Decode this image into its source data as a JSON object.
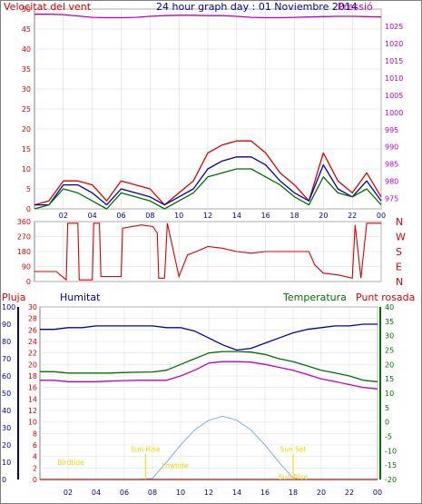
{
  "header": {
    "left_label": "Velocitat del vent",
    "title": "24 hour graph day : 01 Noviembre 2014",
    "right_label": "Pressió"
  },
  "colors": {
    "red": "#e00000",
    "blue": "#0000b0",
    "green": "#007000",
    "magenta": "#c000c0",
    "yellow": "#e8d800",
    "sky": "#7fb0ff",
    "frame": "#808080",
    "tick_blue": "#0000a0"
  },
  "chart_data": [
    {
      "type": "line",
      "name": "wind_pressure",
      "title": "24 hour graph day : 01 Noviembre 2014",
      "xlabel": "",
      "ylabel_left": "Velocitat del vent",
      "ylabel_right": "Pressió",
      "x_ticks": [
        "02",
        "04",
        "06",
        "08",
        "10",
        "12",
        "14",
        "16",
        "18",
        "20",
        "22",
        "00"
      ],
      "ylim_left": [
        0,
        50
      ],
      "yticks_left": [
        0,
        5,
        10,
        15,
        20,
        25,
        30,
        35,
        40,
        45,
        50
      ],
      "ylim_right": [
        972,
        1030
      ],
      "yticks_right": [
        975,
        980,
        985,
        990,
        995,
        1000,
        1005,
        1010,
        1015,
        1020,
        1025
      ],
      "grid": true,
      "hours": [
        0,
        1,
        2,
        3,
        4,
        5,
        6,
        7,
        8,
        9,
        10,
        11,
        12,
        13,
        14,
        15,
        16,
        17,
        18,
        19,
        20,
        21,
        22,
        23,
        24
      ],
      "series": [
        {
          "key": "gust",
          "color": "red",
          "axis": "left",
          "values": [
            1,
            2,
            7,
            7,
            6,
            2,
            7,
            6,
            5,
            1,
            4,
            7,
            14,
            16,
            17,
            17,
            14,
            9,
            6,
            2,
            14,
            7,
            4,
            9,
            3
          ]
        },
        {
          "key": "wind_avg",
          "color": "blue",
          "axis": "left",
          "values": [
            1,
            1,
            6,
            6,
            4,
            1,
            5,
            4,
            3,
            1,
            3,
            5,
            10,
            12,
            13,
            13,
            11,
            7,
            4,
            2,
            11,
            5,
            3,
            7,
            2
          ]
        },
        {
          "key": "wind",
          "color": "green",
          "axis": "left",
          "values": [
            0,
            1,
            5,
            4,
            2,
            0,
            4,
            3,
            2,
            0,
            2,
            4,
            8,
            9,
            10,
            10,
            8,
            6,
            3,
            1,
            8,
            4,
            3,
            5,
            1
          ]
        },
        {
          "key": "pressure",
          "color": "magenta",
          "axis": "right",
          "values": [
            1028.5,
            1028.5,
            1028.4,
            1028,
            1027.6,
            1027.5,
            1027.5,
            1027.6,
            1027.9,
            1028.1,
            1028.2,
            1028.2,
            1028.1,
            1028.1,
            1027.9,
            1027.6,
            1027.5,
            1027.5,
            1027.6,
            1027.7,
            1027.8,
            1027.9,
            1027.9,
            1027.8,
            1027.7
          ]
        }
      ]
    },
    {
      "type": "line",
      "name": "wind_direction",
      "x_ticks": [
        "02",
        "04",
        "06",
        "08",
        "10",
        "12",
        "14",
        "16",
        "18",
        "20",
        "22",
        "00"
      ],
      "ylim": [
        0,
        360
      ],
      "yticks": [
        0,
        90,
        180,
        270,
        360
      ],
      "right_labels": [
        "N",
        "W",
        "S",
        "E",
        "N"
      ],
      "grid": true,
      "points": [
        [
          0,
          60
        ],
        [
          1.5,
          60
        ],
        [
          2.2,
          10
        ],
        [
          2.3,
          350
        ],
        [
          3,
          350
        ],
        [
          3.1,
          10
        ],
        [
          4,
          10
        ],
        [
          4.1,
          350
        ],
        [
          4.5,
          350
        ],
        [
          4.6,
          30
        ],
        [
          6,
          30
        ],
        [
          6.1,
          320
        ],
        [
          7.4,
          340
        ],
        [
          8.2,
          330
        ],
        [
          8.5,
          290
        ],
        [
          8.6,
          20
        ],
        [
          9,
          20
        ],
        [
          9.2,
          350
        ],
        [
          10,
          30
        ],
        [
          10.6,
          160
        ],
        [
          11.2,
          180
        ],
        [
          12,
          210
        ],
        [
          13,
          200
        ],
        [
          14,
          180
        ],
        [
          15,
          170
        ],
        [
          16,
          180
        ],
        [
          17,
          180
        ],
        [
          18,
          180
        ],
        [
          19,
          180
        ],
        [
          19.4,
          100
        ],
        [
          20,
          50
        ],
        [
          21,
          40
        ],
        [
          22,
          20
        ],
        [
          22.2,
          340
        ],
        [
          22.6,
          20
        ],
        [
          23,
          350
        ],
        [
          23.5,
          350
        ],
        [
          24,
          350
        ]
      ]
    },
    {
      "type": "line",
      "name": "humidity_temperature",
      "x_ticks": [
        "02",
        "04",
        "06",
        "08",
        "10",
        "12",
        "14",
        "16",
        "18",
        "20",
        "22",
        "00"
      ],
      "left_labels": {
        "rain": "Pluja",
        "humidity": "Humitat"
      },
      "right_labels": {
        "temperature": "Temperatura",
        "dew": "Punt rosada"
      },
      "ylim_humidity": [
        0,
        100
      ],
      "yticks_humidity": [
        0,
        10,
        20,
        30,
        40,
        50,
        60,
        70,
        80,
        90,
        100
      ],
      "ylim_rain": [
        0,
        30
      ],
      "yticks_rain": [
        0,
        2,
        4,
        6,
        8,
        10,
        12,
        14,
        16,
        18,
        20,
        22,
        24,
        26,
        28,
        30
      ],
      "ylim_temp": [
        -20,
        40
      ],
      "yticks_temp": [
        -20,
        -15,
        -10,
        -5,
        0,
        5,
        10,
        15,
        20,
        25,
        30,
        35,
        40
      ],
      "grid": true,
      "hours": [
        0,
        1,
        2,
        3,
        4,
        5,
        6,
        7,
        8,
        9,
        10,
        11,
        12,
        13,
        14,
        15,
        16,
        17,
        18,
        19,
        20,
        21,
        22,
        23,
        24
      ],
      "series": [
        {
          "key": "humidity",
          "color": "blue",
          "axis": "humidity",
          "values": [
            87,
            87,
            88,
            88,
            89,
            89,
            89,
            89,
            89,
            88,
            88,
            86,
            82,
            78,
            75,
            76,
            79,
            82,
            85,
            87,
            88,
            89,
            89,
            90,
            90
          ]
        },
        {
          "key": "temperature",
          "color": "green",
          "axis": "temp",
          "values": [
            17.5,
            17.5,
            17,
            17,
            17,
            17,
            17.2,
            17.3,
            17.4,
            18,
            20,
            22,
            24,
            24.5,
            24.5,
            24.3,
            23.5,
            22,
            21,
            19.5,
            18,
            17,
            16,
            14.5,
            14
          ]
        },
        {
          "key": "dew_point",
          "color": "magenta",
          "axis": "temp",
          "values": [
            14.5,
            14.5,
            14,
            14,
            14,
            14.2,
            14.4,
            14.5,
            14.5,
            14.5,
            16,
            18,
            20.5,
            21,
            21,
            20.8,
            20,
            19,
            18,
            16.5,
            15,
            14,
            13,
            12,
            11.5
          ]
        },
        {
          "key": "solar",
          "color": "sky",
          "axis": "rain",
          "values": [
            0,
            0,
            0,
            0,
            0,
            0,
            0,
            0,
            0.2,
            3,
            6,
            8.6,
            10.3,
            11,
            10.3,
            8.6,
            6,
            3,
            0.2,
            0,
            0,
            0,
            0,
            0,
            0
          ]
        },
        {
          "key": "rain",
          "color": "red",
          "axis": "rain",
          "values": [
            0,
            0,
            0,
            0,
            0,
            0,
            0,
            0,
            0,
            0,
            0,
            0,
            0,
            0,
            0,
            0,
            0,
            0,
            0,
            0,
            0,
            0,
            0,
            0,
            0
          ]
        }
      ],
      "annotations": [
        {
          "text": "Birdtide",
          "hour": 2.2,
          "value": 2.5
        },
        {
          "text": "Sun Rise",
          "hour": 7.5,
          "value": 4.8
        },
        {
          "text": "Lowtide",
          "hour": 9.6,
          "value": 2
        },
        {
          "text": "Sun Set",
          "hour": 18.0,
          "value": 4.8
        },
        {
          "text": "Sun Rise",
          "hour": 18.0,
          "value": 0
        }
      ]
    }
  ]
}
